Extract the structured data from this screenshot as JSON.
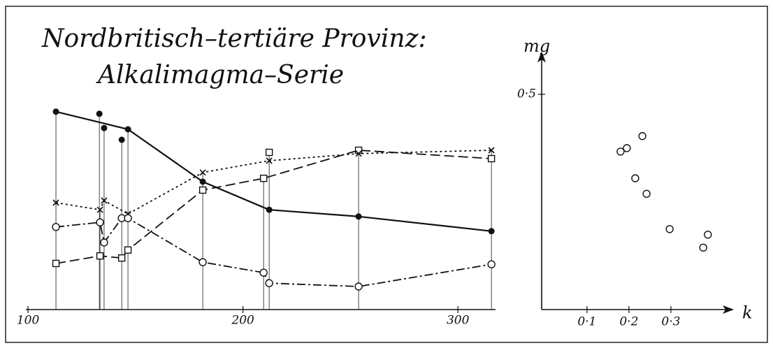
{
  "chart_data": [
    {
      "type": "line",
      "title": "Nordbritisch–tertiäre Provinz:",
      "subtitle": "Alkalimagma–Serie",
      "xlim": [
        99,
        317.5
      ],
      "xticks": [
        100,
        200,
        300
      ],
      "ylim": [
        0,
        50
      ],
      "drop_lines": true,
      "series": [
        {
          "color": "#111",
          "dash": "solid",
          "marker": "filled-circle",
          "x": [
            113.0,
            146.5,
            181.3,
            212.2,
            253.8,
            315.6
          ],
          "values": [
            47.2,
            43.0,
            30.5,
            23.8,
            22.2,
            18.7
          ]
        },
        {
          "color": "#111",
          "dash": "none",
          "marker": "filled-circle",
          "x": [
            133.2,
            135.4,
            143.6
          ],
          "values": [
            46.7,
            43.3,
            40.5
          ]
        },
        {
          "color": "#111",
          "dash": "dashed",
          "marker": "square",
          "x": [
            113.0,
            133.5,
            143.6,
            146.5,
            181.3,
            209.6,
            253.8,
            315.6
          ],
          "values": [
            11.0,
            12.8,
            12.3,
            14.2,
            28.5,
            31.3,
            38.0,
            36.0
          ]
        },
        {
          "color": "#111",
          "dash": "none",
          "marker": "square",
          "x": [
            212.2
          ],
          "values": [
            37.5
          ]
        },
        {
          "color": "#111",
          "dash": "dotted",
          "marker": "cross",
          "x": [
            113.0,
            133.5,
            135.4,
            146.5,
            181.3,
            212.2,
            253.8,
            315.6
          ],
          "values": [
            25.5,
            23.8,
            26.0,
            22.8,
            32.7,
            35.5,
            37.2,
            38.0
          ]
        },
        {
          "color": "#111",
          "dash": "dash-dot",
          "marker": "open-circle",
          "x": [
            113.0,
            133.5,
            135.4,
            143.6,
            146.5,
            181.3,
            209.6,
            212.2,
            253.8,
            315.6
          ],
          "values": [
            19.7,
            20.8,
            16.0,
            21.8,
            21.8,
            11.3,
            8.8,
            6.3,
            5.5,
            10.8
          ]
        }
      ]
    },
    {
      "type": "scatter",
      "ylabel": "mg",
      "xlabel": "k",
      "xlim": [
        -0.008,
        0.45
      ],
      "ylim": [
        0,
        0.6
      ],
      "xticks": [
        {
          "value": 0.1,
          "label": "0·1"
        },
        {
          "value": 0.2,
          "label": "0·2"
        },
        {
          "value": 0.3,
          "label": "0·3"
        }
      ],
      "yticks": [
        {
          "value": 0.5,
          "label": "0·5"
        }
      ],
      "color": "#111",
      "marker": "open-circle",
      "x": [
        0.18,
        0.195,
        0.232,
        0.215,
        0.242,
        0.297,
        0.388,
        0.377
      ],
      "values": [
        0.367,
        0.375,
        0.403,
        0.305,
        0.269,
        0.187,
        0.174,
        0.144
      ]
    }
  ]
}
